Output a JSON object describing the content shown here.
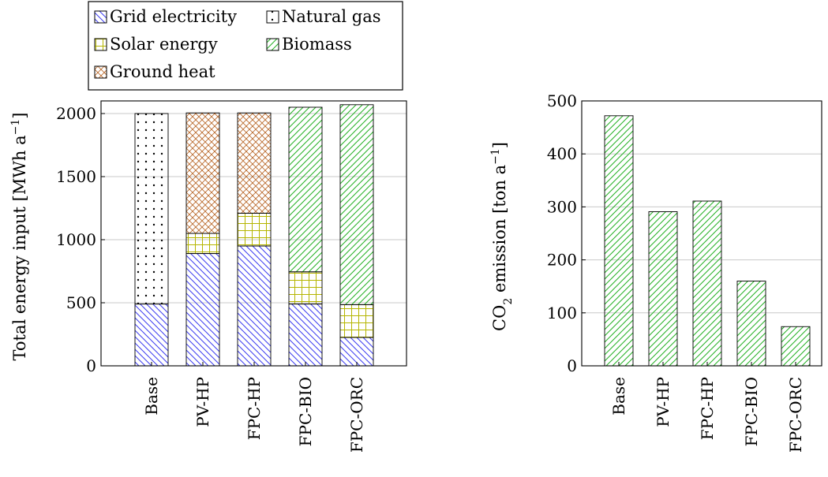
{
  "colors": {
    "grid": "#3b3bf0",
    "gas": "#000000",
    "solar": "#b5b500",
    "ground": "#b96a2c",
    "biomass": "#22b022",
    "gridline": "#c8c8c8"
  },
  "legend": {
    "items": [
      {
        "label": "Grid electricity",
        "source": "grid"
      },
      {
        "label": "Natural gas",
        "source": "gas"
      },
      {
        "label": "Solar energy",
        "source": "solar"
      },
      {
        "label": "Biomass",
        "source": "biomass"
      },
      {
        "label": "Ground heat",
        "source": "ground"
      }
    ]
  },
  "chart_data": [
    {
      "type": "bar",
      "stacked": true,
      "categories": [
        "Base",
        "PV-HP",
        "FPC-HP",
        "FPC-BIO",
        "FPC-ORC"
      ],
      "series": [
        {
          "name": "Grid electricity",
          "source": "grid",
          "values": [
            490,
            890,
            950,
            490,
            225
          ]
        },
        {
          "name": "Natural gas",
          "source": "gas",
          "values": [
            1510,
            0,
            0,
            0,
            0
          ]
        },
        {
          "name": "Solar energy",
          "source": "solar",
          "values": [
            0,
            160,
            260,
            255,
            260
          ]
        },
        {
          "name": "Ground heat",
          "source": "ground",
          "values": [
            0,
            955,
            795,
            0,
            0
          ]
        },
        {
          "name": "Biomass",
          "source": "biomass",
          "values": [
            0,
            0,
            0,
            1305,
            1585
          ]
        }
      ],
      "ylabel_main": "Total energy input [MWh a",
      "ylabel_sup": "−1",
      "ylabel_end": "]",
      "ylim": [
        0,
        2100
      ],
      "yticks": [
        0,
        500,
        1000,
        1500,
        2000
      ],
      "grid": "horizontal",
      "legend_position": "top"
    },
    {
      "type": "bar",
      "categories": [
        "Base",
        "PV-HP",
        "FPC-HP",
        "FPC-BIO",
        "FPC-ORC"
      ],
      "series": [
        {
          "source": "biomass",
          "values": [
            472,
            291,
            311,
            160,
            74
          ]
        }
      ],
      "ylabel_pre": "CO",
      "ylabel_sub": "2",
      "ylabel_mid": " emission [ton a",
      "ylabel_sup": "−1",
      "ylabel_end": "]",
      "ylim": [
        0,
        500
      ],
      "yticks": [
        0,
        100,
        200,
        300,
        400,
        500
      ],
      "grid": "horizontal"
    }
  ]
}
